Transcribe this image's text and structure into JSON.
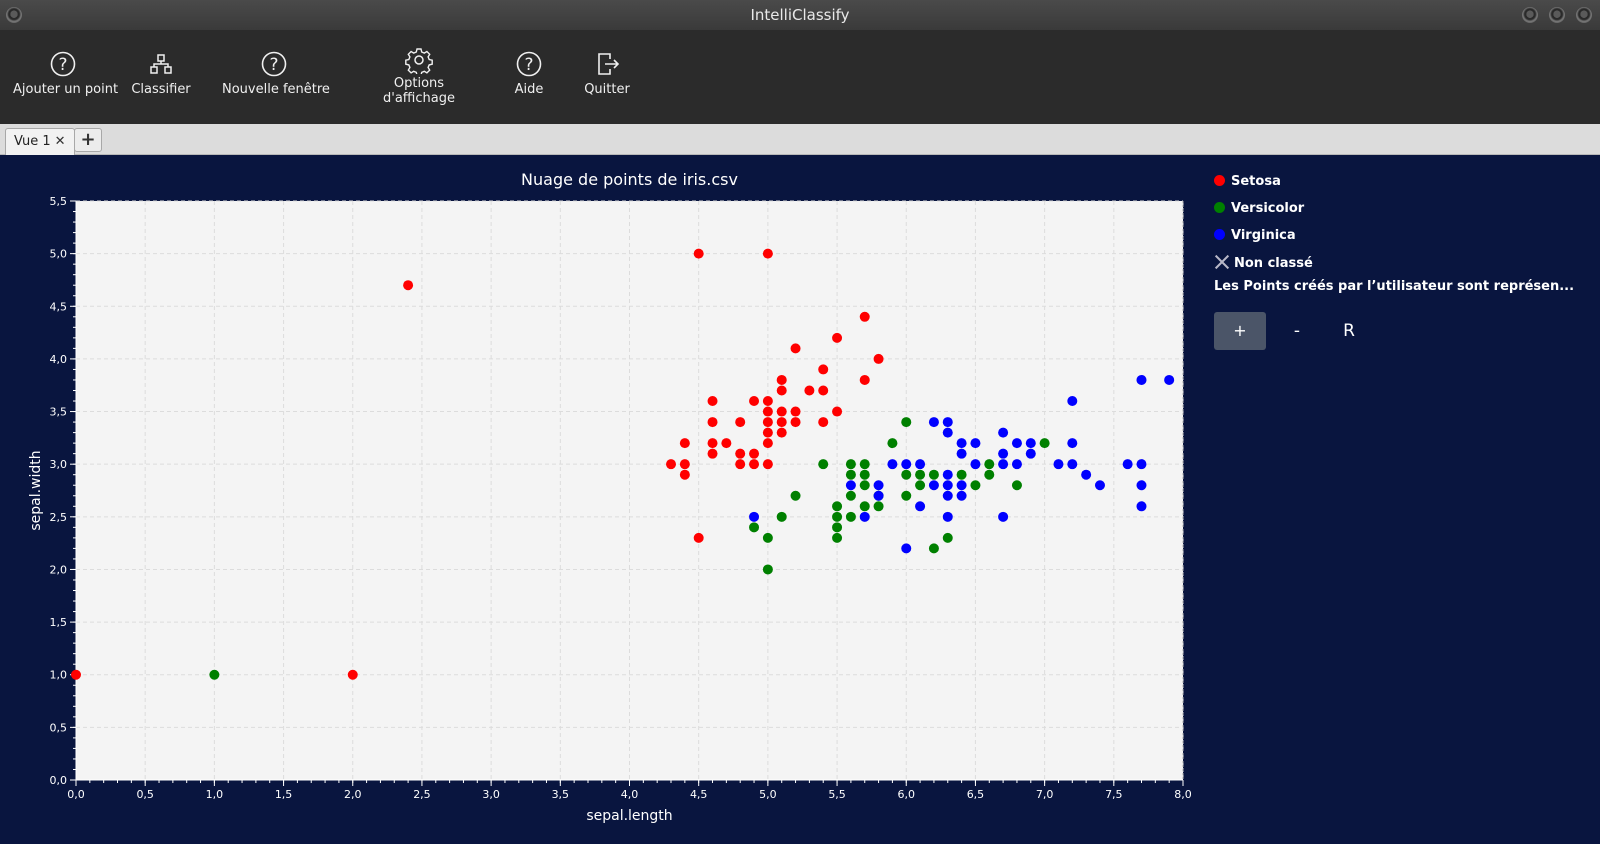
{
  "window": {
    "title": "IntelliClassify"
  },
  "toolbar": {
    "add_point": "Ajouter un point",
    "classify": "Classifier",
    "new_window": "Nouvelle fenêtre",
    "display_options_1": "Options",
    "display_options_2": "d'affichage",
    "help": "Aide",
    "quit": "Quitter"
  },
  "tabs": {
    "active": "Vue 1",
    "close": "✕",
    "add": "+"
  },
  "legend": {
    "setosa": "Setosa",
    "versicolor": "Versicolor",
    "virginica": "Virginica",
    "unclassified": "Non classé",
    "note": "Les Points créés par l’utilisateur sont représen..."
  },
  "zoom": {
    "plus": "+",
    "minus": "-",
    "reset": "R"
  },
  "colors": {
    "setosa": "#ff0000",
    "versicolor": "#008000",
    "virginica": "#0000ff",
    "background": "#09153f",
    "plot": "#f4f4f4"
  },
  "chart_data": {
    "type": "scatter",
    "title": "Nuage de points de iris.csv",
    "xlabel": "sepal.length",
    "ylabel": "sepal.width",
    "xlim": [
      0,
      8
    ],
    "ylim": [
      0,
      5.5
    ],
    "x_ticks": [
      "0,0",
      "0,5",
      "1,0",
      "1,5",
      "2,0",
      "2,5",
      "3,0",
      "3,5",
      "4,0",
      "4,5",
      "5,0",
      "5,5",
      "6,0",
      "6,5",
      "7,0",
      "7,5",
      "8,0"
    ],
    "y_ticks": [
      "0,0",
      "0,5",
      "1,0",
      "1,5",
      "2,0",
      "2,5",
      "3,0",
      "3,5",
      "4,0",
      "4,5",
      "5,0",
      "5,5"
    ],
    "grid": true,
    "legend_position": "right",
    "series": [
      {
        "name": "Setosa",
        "points": [
          [
            0,
            1
          ],
          [
            2,
            1
          ],
          [
            2.4,
            4.7
          ],
          [
            4.5,
            5
          ],
          [
            5,
            5
          ],
          [
            5.7,
            4.4
          ],
          [
            5.5,
            4.2
          ],
          [
            5.2,
            4.1
          ],
          [
            5.8,
            4.0
          ],
          [
            5.4,
            3.9
          ],
          [
            5.1,
            3.8
          ],
          [
            5.7,
            3.8
          ],
          [
            5.1,
            3.7
          ],
          [
            5.3,
            3.7
          ],
          [
            5.4,
            3.7
          ],
          [
            4.6,
            3.6
          ],
          [
            4.9,
            3.6
          ],
          [
            5.0,
            3.6
          ],
          [
            5.0,
            3.5
          ],
          [
            5.1,
            3.5
          ],
          [
            5.2,
            3.5
          ],
          [
            5.5,
            3.5
          ],
          [
            4.6,
            3.4
          ],
          [
            4.8,
            3.4
          ],
          [
            5.0,
            3.4
          ],
          [
            5.1,
            3.4
          ],
          [
            5.2,
            3.4
          ],
          [
            5.4,
            3.4
          ],
          [
            5.0,
            3.3
          ],
          [
            5.1,
            3.3
          ],
          [
            4.4,
            3.2
          ],
          [
            4.6,
            3.2
          ],
          [
            4.7,
            3.2
          ],
          [
            5.0,
            3.2
          ],
          [
            4.6,
            3.1
          ],
          [
            4.8,
            3.1
          ],
          [
            4.9,
            3.1
          ],
          [
            4.3,
            3.0
          ],
          [
            4.4,
            3.0
          ],
          [
            4.8,
            3.0
          ],
          [
            4.9,
            3.0
          ],
          [
            5.0,
            3.0
          ],
          [
            4.4,
            2.9
          ],
          [
            4.5,
            2.3
          ]
        ]
      },
      {
        "name": "Versicolor",
        "points": [
          [
            1,
            1
          ],
          [
            6.0,
            3.4
          ],
          [
            5.9,
            3.2
          ],
          [
            7.0,
            3.2
          ],
          [
            5.4,
            3.0
          ],
          [
            5.6,
            3.0
          ],
          [
            5.7,
            3.0
          ],
          [
            6.6,
            3.0
          ],
          [
            5.6,
            2.9
          ],
          [
            5.7,
            2.9
          ],
          [
            6.0,
            2.9
          ],
          [
            6.1,
            2.9
          ],
          [
            6.2,
            2.9
          ],
          [
            6.4,
            2.9
          ],
          [
            6.6,
            2.9
          ],
          [
            5.7,
            2.8
          ],
          [
            6.1,
            2.8
          ],
          [
            6.5,
            2.8
          ],
          [
            6.8,
            2.8
          ],
          [
            5.2,
            2.7
          ],
          [
            5.6,
            2.7
          ],
          [
            5.8,
            2.7
          ],
          [
            6.0,
            2.7
          ],
          [
            5.5,
            2.6
          ],
          [
            5.7,
            2.6
          ],
          [
            5.8,
            2.6
          ],
          [
            5.1,
            2.5
          ],
          [
            5.5,
            2.5
          ],
          [
            5.6,
            2.5
          ],
          [
            4.9,
            2.4
          ],
          [
            5.5,
            2.4
          ],
          [
            5.0,
            2.3
          ],
          [
            5.5,
            2.3
          ],
          [
            6.3,
            2.3
          ],
          [
            6.2,
            2.2
          ],
          [
            5.0,
            2.0
          ]
        ]
      },
      {
        "name": "Virginica",
        "points": [
          [
            7.7,
            3.8
          ],
          [
            7.9,
            3.8
          ],
          [
            7.2,
            3.6
          ],
          [
            6.2,
            3.4
          ],
          [
            6.3,
            3.4
          ],
          [
            6.3,
            3.3
          ],
          [
            6.7,
            3.3
          ],
          [
            6.4,
            3.2
          ],
          [
            6.5,
            3.2
          ],
          [
            6.8,
            3.2
          ],
          [
            6.9,
            3.2
          ],
          [
            7.2,
            3.2
          ],
          [
            6.4,
            3.1
          ],
          [
            6.7,
            3.1
          ],
          [
            6.9,
            3.1
          ],
          [
            5.9,
            3.0
          ],
          [
            6.0,
            3.0
          ],
          [
            6.1,
            3.0
          ],
          [
            6.5,
            3.0
          ],
          [
            6.7,
            3.0
          ],
          [
            6.8,
            3.0
          ],
          [
            7.1,
            3.0
          ],
          [
            7.2,
            3.0
          ],
          [
            7.6,
            3.0
          ],
          [
            7.7,
            3.0
          ],
          [
            6.3,
            2.9
          ],
          [
            7.3,
            2.9
          ],
          [
            5.6,
            2.8
          ],
          [
            5.8,
            2.8
          ],
          [
            6.2,
            2.8
          ],
          [
            6.3,
            2.8
          ],
          [
            6.4,
            2.8
          ],
          [
            7.4,
            2.8
          ],
          [
            7.7,
            2.8
          ],
          [
            5.8,
            2.7
          ],
          [
            6.3,
            2.7
          ],
          [
            6.4,
            2.7
          ],
          [
            6.1,
            2.6
          ],
          [
            7.7,
            2.6
          ],
          [
            4.9,
            2.5
          ],
          [
            5.7,
            2.5
          ],
          [
            6.3,
            2.5
          ],
          [
            6.7,
            2.5
          ],
          [
            6.0,
            2.2
          ]
        ]
      }
    ]
  }
}
